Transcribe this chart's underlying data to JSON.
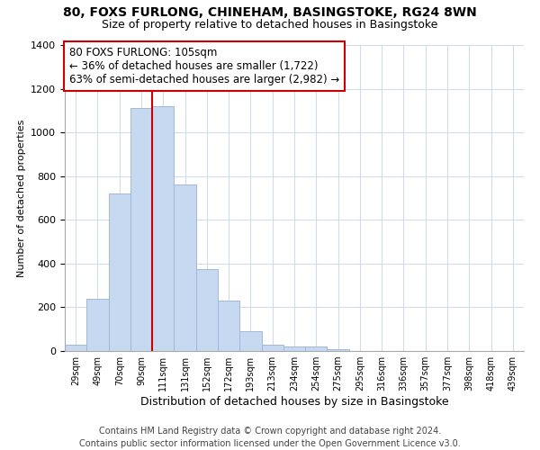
{
  "title1": "80, FOXS FURLONG, CHINEHAM, BASINGSTOKE, RG24 8WN",
  "title2": "Size of property relative to detached houses in Basingstoke",
  "xlabel": "Distribution of detached houses by size in Basingstoke",
  "ylabel": "Number of detached properties",
  "bar_labels": [
    "29sqm",
    "49sqm",
    "70sqm",
    "90sqm",
    "111sqm",
    "131sqm",
    "152sqm",
    "172sqm",
    "193sqm",
    "213sqm",
    "234sqm",
    "254sqm",
    "275sqm",
    "295sqm",
    "316sqm",
    "336sqm",
    "357sqm",
    "377sqm",
    "398sqm",
    "418sqm",
    "439sqm"
  ],
  "bar_heights": [
    30,
    240,
    720,
    1110,
    1120,
    760,
    375,
    230,
    90,
    30,
    20,
    20,
    10,
    0,
    0,
    0,
    0,
    0,
    0,
    0,
    0
  ],
  "bar_color": "#c6d9f0",
  "bar_edge_color": "#a0b8d8",
  "vline_color": "#cc0000",
  "annotation_line1": "80 FOXS FURLONG: 105sqm",
  "annotation_line2": "← 36% of detached houses are smaller (1,722)",
  "annotation_line3": "63% of semi-detached houses are larger (2,982) →",
  "annotation_box_color": "#ffffff",
  "annotation_box_edge_color": "#cc0000",
  "ylim": [
    0,
    1400
  ],
  "yticks": [
    0,
    200,
    400,
    600,
    800,
    1000,
    1200,
    1400
  ],
  "footer1": "Contains HM Land Registry data © Crown copyright and database right 2024.",
  "footer2": "Contains public sector information licensed under the Open Government Licence v3.0.",
  "title1_fontsize": 10,
  "title2_fontsize": 9,
  "xlabel_fontsize": 9,
  "ylabel_fontsize": 8,
  "annotation_fontsize": 8.5,
  "footer_fontsize": 7
}
